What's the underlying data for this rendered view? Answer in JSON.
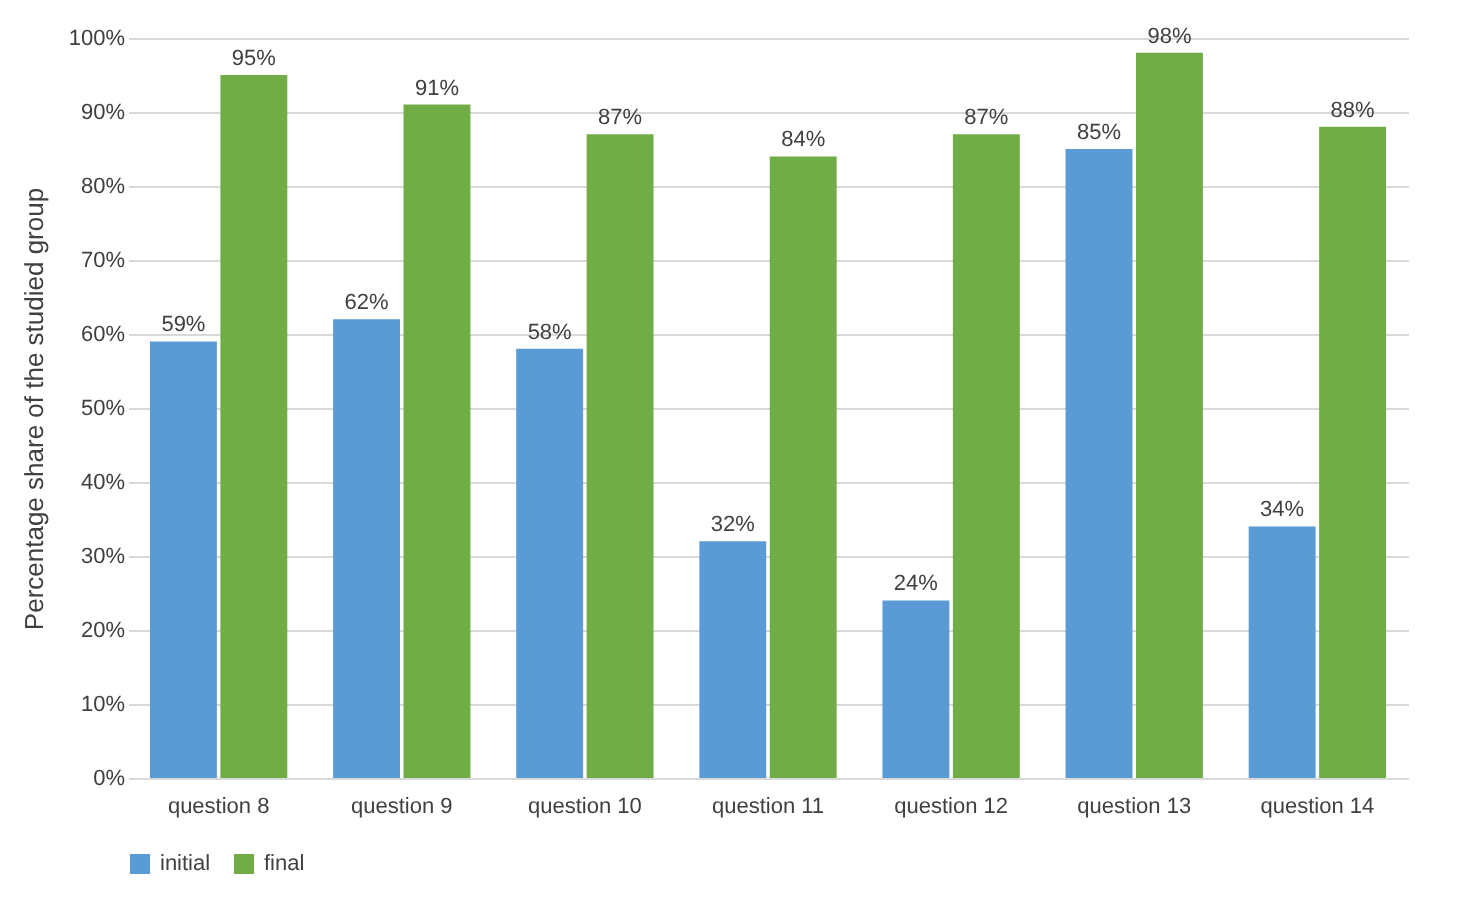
{
  "chart_data": {
    "type": "bar",
    "ylabel": "Percentage share of the studied group",
    "categories": [
      "question 8",
      "question 9",
      "question 10",
      "question 11",
      "question 12",
      "question 13",
      "question 14"
    ],
    "series": [
      {
        "name": "initial",
        "color": "#5b9bd5",
        "values": [
          59,
          62,
          58,
          32,
          24,
          85,
          34
        ],
        "value_labels": [
          "59%",
          "62%",
          "58%",
          "32%",
          "24%",
          "85%",
          "34%"
        ]
      },
      {
        "name": "final",
        "color": "#70ad47",
        "values": [
          95,
          91,
          87,
          84,
          87,
          98,
          88
        ],
        "value_labels": [
          "95%",
          "91%",
          "87%",
          "84%",
          "87%",
          "98%",
          "88%"
        ]
      }
    ],
    "ylim": [
      0,
      100
    ],
    "yticks": [
      {
        "value": 0,
        "label": "0%"
      },
      {
        "value": 10,
        "label": "10%"
      },
      {
        "value": 20,
        "label": "20%"
      },
      {
        "value": 30,
        "label": "30%"
      },
      {
        "value": 40,
        "label": "40%"
      },
      {
        "value": 50,
        "label": "50%"
      },
      {
        "value": 60,
        "label": "60%"
      },
      {
        "value": 70,
        "label": "70%"
      },
      {
        "value": 80,
        "label": "80%"
      },
      {
        "value": 90,
        "label": "90%"
      },
      {
        "value": 100,
        "label": "100%"
      }
    ],
    "grid": "y",
    "legend": "bottom"
  }
}
